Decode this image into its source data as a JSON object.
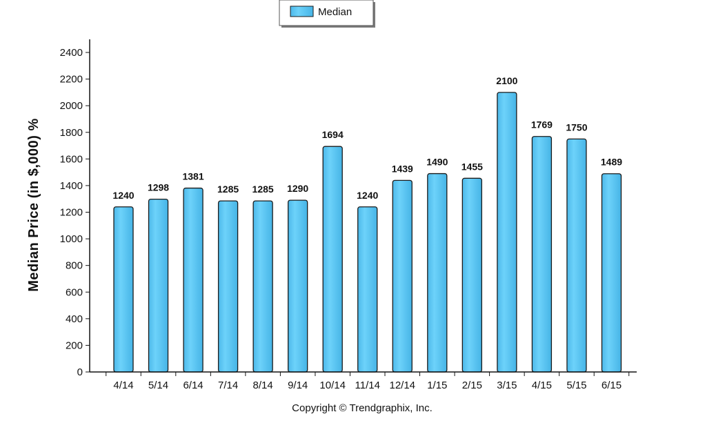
{
  "chart_data": {
    "type": "bar",
    "categories": [
      "4/14",
      "5/14",
      "6/14",
      "7/14",
      "8/14",
      "9/14",
      "10/14",
      "11/14",
      "12/14",
      "1/15",
      "2/15",
      "3/15",
      "4/15",
      "5/15",
      "6/15"
    ],
    "series": [
      {
        "name": "Median",
        "values": [
          1240,
          1298,
          1381,
          1285,
          1285,
          1290,
          1694,
          1240,
          1439,
          1490,
          1455,
          2100,
          1769,
          1750,
          1489
        ]
      }
    ],
    "title": "",
    "xlabel": "",
    "ylabel": "Median Price (in $,000) %",
    "ylim": [
      0,
      2400
    ],
    "yticks": [
      0,
      200,
      400,
      600,
      800,
      1000,
      1200,
      1400,
      1600,
      1800,
      2000,
      2200,
      2400
    ],
    "grid": false,
    "legend_position": "top-center",
    "bar_color": "#5cc8f5",
    "bar_edge_color": "#1a1a1a"
  },
  "footer": {
    "copyright": "Copyright © Trendgraphix, Inc."
  }
}
